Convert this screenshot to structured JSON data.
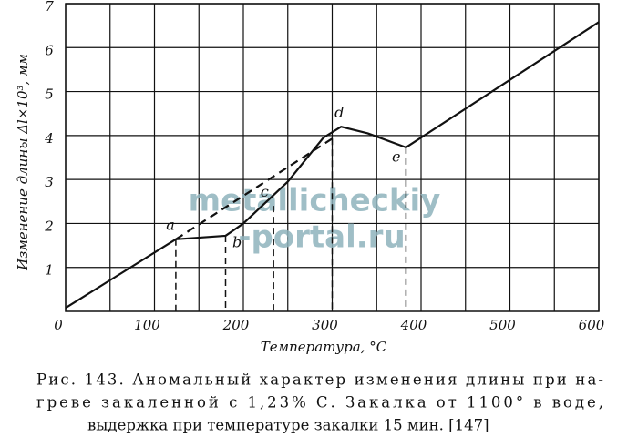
{
  "chart_data": {
    "type": "line",
    "y_label": "Изменение длины Δl×10³, мм",
    "x_label": "Температура, °С",
    "xlim": [
      0,
      600
    ],
    "ylim": [
      0,
      7
    ],
    "xticks": [
      0,
      100,
      200,
      300,
      400,
      500,
      600
    ],
    "x_minor_grid": [
      50,
      150,
      250,
      350,
      450,
      550
    ],
    "yticks": [
      1,
      2,
      3,
      4,
      5,
      6,
      7
    ],
    "grid": true,
    "series": [
      {
        "color": "#111111",
        "dashed": false,
        "x": [
          0,
          124,
          180,
          200,
          250,
          290,
          310,
          340,
          383,
          600
        ],
        "values": [
          0.08,
          1.64,
          1.72,
          2.0,
          2.95,
          3.95,
          4.2,
          4.05,
          3.73,
          6.58
        ]
      },
      {
        "color": "#111111",
        "dashed": true,
        "x": [
          124,
          300
        ],
        "values": [
          1.64,
          3.93
        ]
      }
    ],
    "drop_lines": [
      {
        "x": 124,
        "y": 1.64
      },
      {
        "x": 180,
        "y": 1.72
      },
      {
        "x": 234,
        "y": 2.4
      },
      {
        "x": 300,
        "y": 3.93
      },
      {
        "x": 383,
        "y": 3.73
      }
    ],
    "annotations": [
      {
        "text": "a",
        "x": 118,
        "y": 1.95
      },
      {
        "text": "b",
        "x": 193,
        "y": 1.55
      },
      {
        "text": "c",
        "x": 224,
        "y": 2.7
      },
      {
        "text": "d",
        "x": 308,
        "y": 4.5
      },
      {
        "text": "e",
        "x": 372,
        "y": 3.5
      }
    ],
    "watermark": [
      "metallicheckiy",
      "-portal.ru"
    ],
    "caption": [
      "Рис. 143. Аномальный характер изменения длины при на-",
      "греве  закаленной  с 1,23% С. Закалка  от 1100° в воде,",
      "выдержка при температуре закалки 15 мин. [147]"
    ]
  }
}
